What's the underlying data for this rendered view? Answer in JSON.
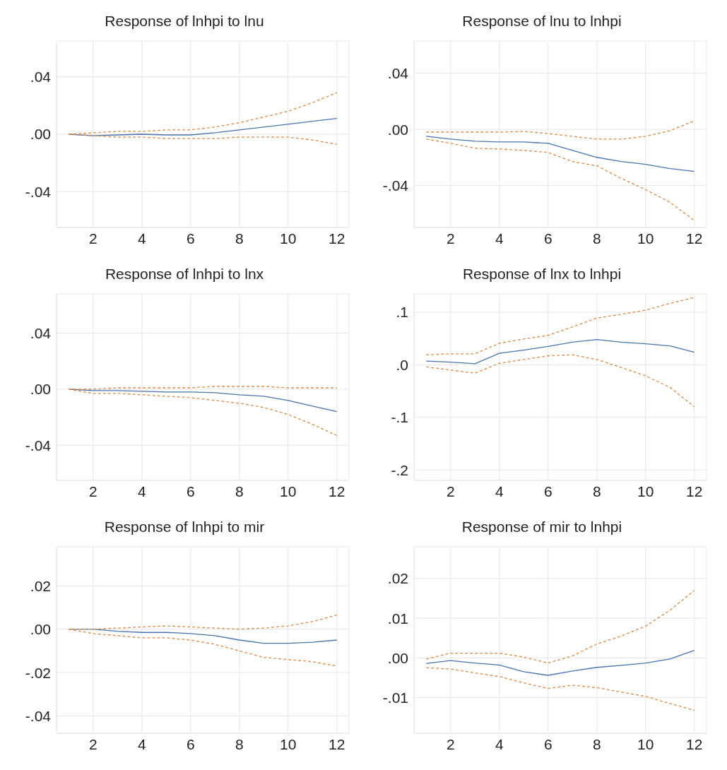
{
  "chart_data": [
    {
      "type": "line",
      "title": "Response of lnhpi to lnu",
      "x": [
        1,
        2,
        3,
        4,
        5,
        6,
        7,
        8,
        9,
        10,
        11,
        12
      ],
      "xlim": [
        0.5,
        12.5
      ],
      "xticks": [
        2,
        4,
        6,
        8,
        10,
        12
      ],
      "ylim": [
        -0.065,
        0.065
      ],
      "yticks": [
        {
          "value": -0.04,
          "label": "-.04"
        },
        {
          "value": 0,
          "label": ".00"
        },
        {
          "value": 0.04,
          "label": ".04"
        }
      ],
      "grid": true,
      "series": [
        {
          "color": "#4a72b0",
          "line_style": "solid",
          "values": [
            0,
            -0.001,
            -0.0005,
            0,
            -0.0005,
            -0.0005,
            0.001,
            0.003,
            0.005,
            0.007,
            0.009,
            0.011
          ]
        },
        {
          "color": "#d98c4a",
          "line_style": "dashed",
          "values": [
            0,
            0.001,
            0.002,
            0.002,
            0.003,
            0.003,
            0.005,
            0.008,
            0.012,
            0.016,
            0.022,
            0.029
          ]
        },
        {
          "color": "#d98c4a",
          "line_style": "dashed",
          "values": [
            0,
            -0.001,
            -0.002,
            -0.002,
            -0.003,
            -0.003,
            -0.003,
            -0.002,
            -0.002,
            -0.002,
            -0.004,
            -0.007
          ]
        }
      ]
    },
    {
      "type": "line",
      "title": "Response of lnu to lnhpi",
      "x": [
        1,
        2,
        3,
        4,
        5,
        6,
        7,
        8,
        9,
        10,
        11,
        12
      ],
      "xlim": [
        0.5,
        12.5
      ],
      "xticks": [
        2,
        4,
        6,
        8,
        10,
        12
      ],
      "ylim": [
        -0.07,
        0.063
      ],
      "yticks": [
        {
          "value": -0.04,
          "label": "-.04"
        },
        {
          "value": 0,
          "label": ".00"
        },
        {
          "value": 0.04,
          "label": ".04"
        }
      ],
      "grid": true,
      "series": [
        {
          "color": "#4a72b0",
          "line_style": "solid",
          "values": [
            -0.005,
            -0.007,
            -0.0085,
            -0.009,
            -0.009,
            -0.01,
            -0.015,
            -0.02,
            -0.023,
            -0.025,
            -0.028,
            -0.03
          ]
        },
        {
          "color": "#d98c4a",
          "line_style": "dashed",
          "values": [
            -0.002,
            -0.002,
            -0.002,
            -0.002,
            -0.0015,
            -0.003,
            -0.005,
            -0.007,
            -0.007,
            -0.005,
            -0.001,
            0.006
          ]
        },
        {
          "color": "#d98c4a",
          "line_style": "dashed",
          "values": [
            -0.007,
            -0.01,
            -0.0135,
            -0.014,
            -0.015,
            -0.0165,
            -0.023,
            -0.026,
            -0.035,
            -0.043,
            -0.052,
            -0.065
          ]
        }
      ]
    },
    {
      "type": "line",
      "title": "Response of lnhpi to lnx",
      "x": [
        1,
        2,
        3,
        4,
        5,
        6,
        7,
        8,
        9,
        10,
        11,
        12
      ],
      "xlim": [
        0.5,
        12.5
      ],
      "xticks": [
        2,
        4,
        6,
        8,
        10,
        12
      ],
      "ylim": [
        -0.065,
        0.068
      ],
      "yticks": [
        {
          "value": -0.04,
          "label": "-.04"
        },
        {
          "value": 0,
          "label": ".00"
        },
        {
          "value": 0.04,
          "label": ".04"
        }
      ],
      "grid": true,
      "series": [
        {
          "color": "#4a72b0",
          "line_style": "solid",
          "values": [
            0,
            -0.001,
            -0.001,
            -0.0015,
            -0.002,
            -0.002,
            -0.0025,
            -0.004,
            -0.005,
            -0.008,
            -0.012,
            -0.016
          ]
        },
        {
          "color": "#d98c4a",
          "line_style": "dashed",
          "values": [
            0,
            0,
            0.001,
            0.001,
            0.001,
            0.001,
            0.002,
            0.002,
            0.002,
            0.001,
            0.001,
            0.001
          ]
        },
        {
          "color": "#d98c4a",
          "line_style": "dashed",
          "values": [
            0,
            -0.003,
            -0.003,
            -0.004,
            -0.005,
            -0.006,
            -0.008,
            -0.01,
            -0.013,
            -0.018,
            -0.025,
            -0.033
          ]
        }
      ]
    },
    {
      "type": "line",
      "title": "Response of lnx to lnhpi",
      "x": [
        1,
        2,
        3,
        4,
        5,
        6,
        7,
        8,
        9,
        10,
        11,
        12
      ],
      "xlim": [
        0.5,
        12.5
      ],
      "xticks": [
        2,
        4,
        6,
        8,
        10,
        12
      ],
      "ylim": [
        -0.22,
        0.135
      ],
      "yticks": [
        {
          "value": -0.2,
          "label": "-.2"
        },
        {
          "value": -0.1,
          "label": "-.1"
        },
        {
          "value": 0,
          "label": ".0"
        },
        {
          "value": 0.1,
          "label": ".1"
        }
      ],
      "grid": true,
      "series": [
        {
          "color": "#4a72b0",
          "line_style": "solid",
          "values": [
            0.007,
            0.005,
            0.002,
            0.022,
            0.028,
            0.035,
            0.043,
            0.048,
            0.043,
            0.04,
            0.036,
            0.024
          ]
        },
        {
          "color": "#d98c4a",
          "line_style": "dashed",
          "values": [
            0.019,
            0.021,
            0.021,
            0.041,
            0.049,
            0.056,
            0.072,
            0.089,
            0.096,
            0.104,
            0.117,
            0.128
          ]
        },
        {
          "color": "#d98c4a",
          "line_style": "dashed",
          "values": [
            -0.004,
            -0.01,
            -0.016,
            0.003,
            0.01,
            0.017,
            0.019,
            0.01,
            -0.005,
            -0.021,
            -0.043,
            -0.08
          ]
        }
      ]
    },
    {
      "type": "line",
      "title": "Response of lnhpi to mir",
      "x": [
        1,
        2,
        3,
        4,
        5,
        6,
        7,
        8,
        9,
        10,
        11,
        12
      ],
      "xlim": [
        0.5,
        12.5
      ],
      "xticks": [
        2,
        4,
        6,
        8,
        10,
        12
      ],
      "ylim": [
        -0.048,
        0.038
      ],
      "yticks": [
        {
          "value": -0.04,
          "label": "-.04"
        },
        {
          "value": -0.02,
          "label": "-.02"
        },
        {
          "value": 0,
          "label": ".00"
        },
        {
          "value": 0.02,
          "label": ".02"
        }
      ],
      "grid": true,
      "series": [
        {
          "color": "#4a72b0",
          "line_style": "solid",
          "values": [
            0,
            0,
            -0.001,
            -0.0015,
            -0.0015,
            -0.002,
            -0.003,
            -0.005,
            -0.0065,
            -0.0065,
            -0.006,
            -0.005
          ]
        },
        {
          "color": "#d98c4a",
          "line_style": "dashed",
          "values": [
            0,
            0,
            0.0005,
            0.001,
            0.0015,
            0.001,
            0.0005,
            0,
            0.0005,
            0.0015,
            0.0035,
            0.0065
          ]
        },
        {
          "color": "#d98c4a",
          "line_style": "dashed",
          "values": [
            0,
            -0.002,
            -0.003,
            -0.004,
            -0.004,
            -0.005,
            -0.007,
            -0.01,
            -0.013,
            -0.014,
            -0.015,
            -0.017
          ]
        }
      ]
    },
    {
      "type": "line",
      "title": "Response of mir to lnhpi",
      "x": [
        1,
        2,
        3,
        4,
        5,
        6,
        7,
        8,
        9,
        10,
        11,
        12
      ],
      "xlim": [
        0.5,
        12.5
      ],
      "xticks": [
        2,
        4,
        6,
        8,
        10,
        12
      ],
      "ylim": [
        -0.019,
        0.028
      ],
      "yticks": [
        {
          "value": -0.01,
          "label": "-.01"
        },
        {
          "value": 0,
          "label": ".00"
        },
        {
          "value": 0.01,
          "label": ".01"
        },
        {
          "value": 0.02,
          "label": ".02"
        }
      ],
      "grid": true,
      "series": [
        {
          "color": "#4a72b0",
          "line_style": "solid",
          "values": [
            -0.0014,
            -0.0007,
            -0.0013,
            -0.0018,
            -0.0035,
            -0.0044,
            -0.0033,
            -0.0024,
            -0.0019,
            -0.0013,
            -0.0003,
            0.0019
          ]
        },
        {
          "color": "#d98c4a",
          "line_style": "dashed",
          "values": [
            -0.0003,
            0.0012,
            0.0012,
            0.0012,
            0.0002,
            -0.0013,
            0.0005,
            0.0035,
            0.0055,
            0.008,
            0.012,
            0.017
          ]
        },
        {
          "color": "#d98c4a",
          "line_style": "dashed",
          "values": [
            -0.0025,
            -0.0028,
            -0.0038,
            -0.0047,
            -0.0063,
            -0.0077,
            -0.0069,
            -0.0075,
            -0.0086,
            -0.0097,
            -0.0115,
            -0.0132
          ]
        }
      ]
    }
  ]
}
